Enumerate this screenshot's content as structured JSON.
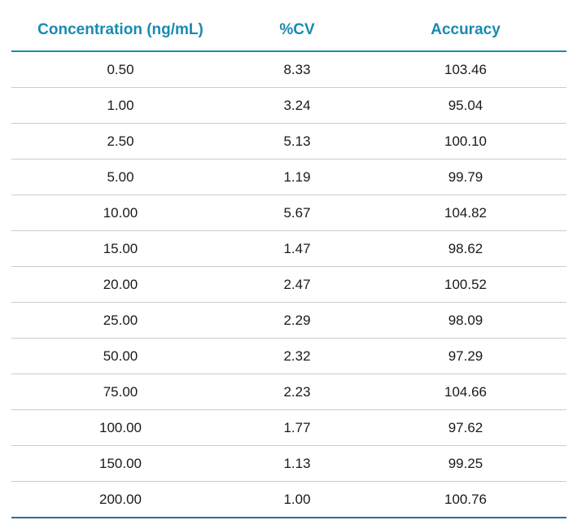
{
  "chart_data": {
    "type": "table",
    "columns": [
      "Concentration (ng/mL)",
      "%CV",
      "Accuracy"
    ],
    "rows": [
      [
        "0.50",
        "8.33",
        "103.46"
      ],
      [
        "1.00",
        "3.24",
        "95.04"
      ],
      [
        "2.50",
        "5.13",
        "100.10"
      ],
      [
        "5.00",
        "1.19",
        "99.79"
      ],
      [
        "10.00",
        "5.67",
        "104.82"
      ],
      [
        "15.00",
        "1.47",
        "98.62"
      ],
      [
        "20.00",
        "2.47",
        "100.52"
      ],
      [
        "25.00",
        "2.29",
        "98.09"
      ],
      [
        "50.00",
        "2.32",
        "97.29"
      ],
      [
        "75.00",
        "2.23",
        "104.66"
      ],
      [
        "100.00",
        "1.77",
        "97.62"
      ],
      [
        "150.00",
        "1.13",
        "99.25"
      ],
      [
        "200.00",
        "1.00",
        "100.76"
      ]
    ]
  },
  "colors": {
    "header_text": "#1a8ab0",
    "header_rule": "#1a8ab0",
    "row_rule": "#c9cdd1",
    "bottom_rule": "#2b6da0",
    "cell_text": "#1a1a1a"
  }
}
